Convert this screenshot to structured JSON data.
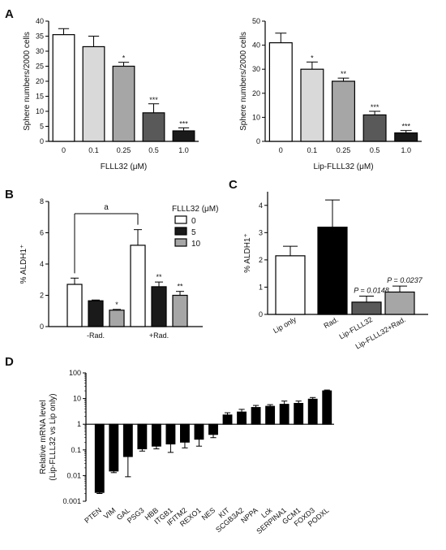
{
  "panel_labels": [
    "A",
    "B",
    "C",
    "D"
  ],
  "chart_data": [
    {
      "panel": "A",
      "type": "bar",
      "title": "",
      "xlabel": "FLLL32 (μM)",
      "ylabel": "Sphere numbers/2000 cells",
      "ylim": [
        0,
        40
      ],
      "yticks": [
        0,
        5,
        10,
        15,
        20,
        25,
        30,
        35,
        40
      ],
      "categories": [
        "0",
        "0.1",
        "0.25",
        "0.5",
        "1.0"
      ],
      "values": [
        35.5,
        31.5,
        25.0,
        9.5,
        3.5
      ],
      "errors": [
        2.0,
        3.5,
        1.3,
        3.0,
        1.0
      ],
      "annotations": [
        "",
        "",
        "*",
        "***",
        "***"
      ],
      "colors": [
        "#ffffff",
        "#d9d9d9",
        "#a6a6a6",
        "#595959",
        "#1a1a1a"
      ]
    },
    {
      "panel": "A",
      "type": "bar",
      "title": "",
      "xlabel": "Lip-FLLL32 (μM)",
      "ylabel": "Sphere numbers/2000 cells",
      "ylim": [
        0,
        50
      ],
      "yticks": [
        0,
        10,
        20,
        30,
        40,
        50
      ],
      "categories": [
        "0",
        "0.1",
        "0.25",
        "0.5",
        "1.0"
      ],
      "values": [
        41.0,
        30.0,
        25.0,
        11.0,
        3.5
      ],
      "errors": [
        4.0,
        3.0,
        1.3,
        1.5,
        1.0
      ],
      "annotations": [
        "",
        "*",
        "**",
        "***",
        "***"
      ],
      "colors": [
        "#ffffff",
        "#d9d9d9",
        "#a6a6a6",
        "#595959",
        "#1a1a1a"
      ]
    },
    {
      "panel": "B",
      "type": "bar",
      "title": "",
      "xlabel": "",
      "ylabel": "% ALDH1⁺",
      "ylim": [
        0,
        8
      ],
      "yticks": [
        0,
        2,
        4,
        6,
        8
      ],
      "categories": [
        "-Rad.",
        "+Rad."
      ],
      "legend_title": "FLLL32 (μM)",
      "legend_position": "top-right",
      "bracket_label": "a",
      "series": [
        {
          "name": "0",
          "values": [
            2.7,
            5.2
          ],
          "errors": [
            0.4,
            1.0
          ],
          "annotations": [
            "",
            ""
          ],
          "color": "#ffffff"
        },
        {
          "name": "5",
          "values": [
            1.65,
            2.55
          ],
          "errors": [
            0.05,
            0.3
          ],
          "annotations": [
            "",
            "**"
          ],
          "color": "#1a1a1a"
        },
        {
          "name": "10",
          "values": [
            1.05,
            2.0
          ],
          "errors": [
            0.05,
            0.25
          ],
          "annotations": [
            "*",
            "**"
          ],
          "color": "#a6a6a6"
        }
      ]
    },
    {
      "panel": "C",
      "type": "bar",
      "title": "",
      "xlabel": "",
      "ylabel": "% ALDH1⁺",
      "ylim": [
        0,
        4.5
      ],
      "yticks": [
        0,
        1,
        2,
        3,
        4
      ],
      "categories": [
        "Lip only",
        "Rad.",
        "Lip-FLLL32",
        "Lip-FLLL32+Rad."
      ],
      "values": [
        2.15,
        3.2,
        0.45,
        0.82
      ],
      "errors": [
        0.35,
        1.0,
        0.22,
        0.22
      ],
      "annotations": [
        "",
        "",
        "P = 0.0148",
        "P = 0.0237"
      ],
      "colors": [
        "#ffffff",
        "#000000",
        "#595959",
        "#a6a6a6"
      ]
    },
    {
      "panel": "D",
      "type": "bar",
      "title": "",
      "xlabel": "",
      "ylabel": "Relative mRNA level\n(Lip-FLLL32 vs Lip only)",
      "yscale": "log",
      "ylim": [
        0.001,
        100
      ],
      "yticks": [
        "0.001",
        "0.01",
        "0.1",
        "1",
        "10",
        "100"
      ],
      "baseline": 1,
      "categories": [
        "PTEN",
        "VIM",
        "GAL",
        "PSG3",
        "HBB",
        "ITGB1",
        "IFITM2",
        "REXO1",
        "NES",
        "KIT",
        "SCGB3A2",
        "NPPA",
        "Lck",
        "SERPINA1",
        "GCM1",
        "FOXD3",
        "PODXL"
      ],
      "values": [
        0.0022,
        0.015,
        0.055,
        0.11,
        0.14,
        0.17,
        0.2,
        0.26,
        0.4,
        2.3,
        3.0,
        4.5,
        5.0,
        6.0,
        6.5,
        9.5,
        20.0
      ],
      "errors_low": [
        0.0002,
        0.002,
        0.046,
        0.02,
        0.03,
        0.09,
        0.08,
        0.12,
        0.1,
        0.4,
        0.5,
        0.7,
        0.6,
        1.2,
        1.0,
        1.0,
        1.0
      ],
      "errors_high": [
        0.0002,
        0.002,
        0.08,
        0.03,
        0.03,
        0.08,
        0.08,
        0.12,
        0.1,
        0.5,
        0.8,
        0.9,
        0.8,
        2.0,
        1.5,
        1.5,
        1.5
      ],
      "color": "#000000"
    }
  ]
}
